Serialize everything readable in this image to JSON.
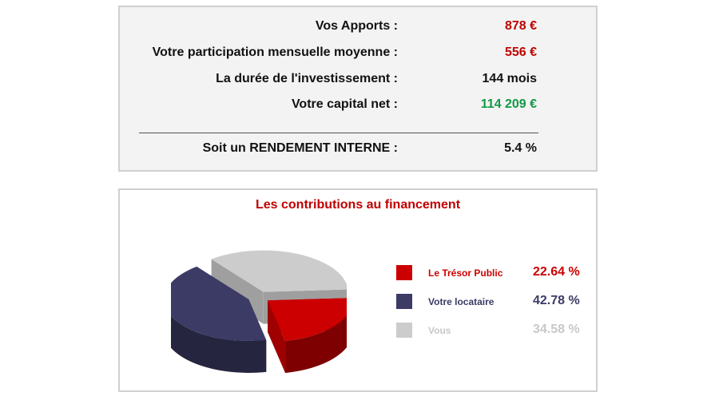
{
  "summary": {
    "rows": [
      {
        "label": "Vos Apports :",
        "value": "878 €",
        "color": "#c00000"
      },
      {
        "label": "Votre participation mensuelle moyenne :",
        "value": "556 €",
        "color": "#c00000"
      },
      {
        "label": "La durée de l'investissement :",
        "value": "144 mois",
        "color": "#111111"
      },
      {
        "label": "Votre capital net :",
        "value": "114 209 €",
        "color": "#119944"
      }
    ],
    "result": {
      "label": "Soit un RENDEMENT INTERNE :",
      "value": "5.4 %"
    }
  },
  "chart": {
    "title": "Les contributions au financement",
    "legend": [
      {
        "name": "Le Trésor Public",
        "percent": "22.64 %",
        "color": "#cc0000"
      },
      {
        "name": "Votre locataire",
        "percent": "42.78 %",
        "color": "#3b3b66"
      },
      {
        "name": "Vous",
        "percent": "34.58 %",
        "color": "#cccccc"
      }
    ]
  },
  "chart_data": {
    "type": "pie",
    "title": "Les contributions au financement",
    "categories": [
      "Le Trésor Public",
      "Votre locataire",
      "Vous"
    ],
    "values": [
      22.64,
      42.78,
      34.58
    ],
    "colors": [
      "#cc0000",
      "#3b3b66",
      "#cccccc"
    ],
    "legend_position": "right"
  }
}
